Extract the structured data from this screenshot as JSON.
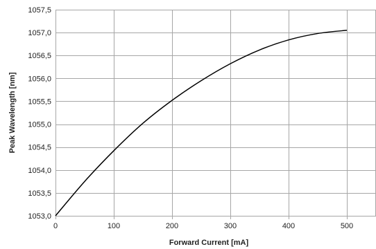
{
  "chart_data": {
    "type": "line",
    "xlabel": "Forward Current [mA]",
    "ylabel": "Peak Wavelength [nm]",
    "xlim": [
      0,
      550
    ],
    "ylim": [
      1053.0,
      1057.5
    ],
    "x_ticks": [
      0,
      100,
      200,
      300,
      400,
      500
    ],
    "x_tick_labels": [
      "0",
      "100",
      "200",
      "300",
      "400",
      "500"
    ],
    "y_ticks": [
      1053.0,
      1053.5,
      1054.0,
      1054.5,
      1055.0,
      1055.5,
      1056.0,
      1056.5,
      1057.0,
      1057.5
    ],
    "y_tick_labels": [
      "1053,0",
      "1053,5",
      "1054,0",
      "1054,5",
      "1055,0",
      "1055,5",
      "1056,0",
      "1056,5",
      "1057,0",
      "1057,5"
    ],
    "grid": true,
    "legend": "none",
    "line_color": "#000000",
    "grid_color": "#a6a6a6",
    "series": [
      {
        "x": [
          0,
          50,
          100,
          150,
          200,
          250,
          300,
          350,
          400,
          450,
          500
        ],
        "values": [
          1053.0,
          1053.75,
          1054.42,
          1055.02,
          1055.52,
          1055.95,
          1056.32,
          1056.62,
          1056.84,
          1056.98,
          1057.05
        ]
      }
    ]
  }
}
